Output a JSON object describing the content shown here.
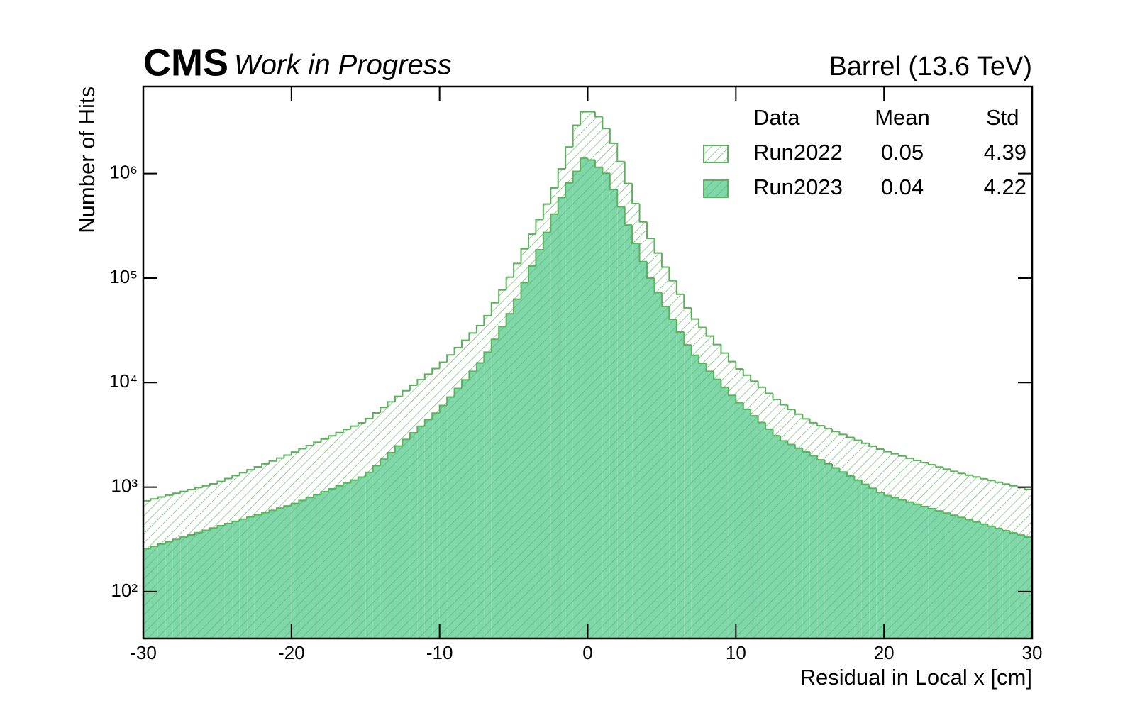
{
  "chart_data": {
    "type": "histogram",
    "title": "CMS",
    "subtitle": "Work in Progress",
    "annotation": "Barrel (13.6 TeV)",
    "xlabel": "Residual in Local x [cm]",
    "ylabel": "Number of Hits",
    "log_y": true,
    "xlim": [
      -30,
      30
    ],
    "xticks": [
      -30,
      -20,
      -10,
      0,
      10,
      20,
      30
    ],
    "ylim": [
      35.6,
      6800000
    ],
    "yticks": [
      {
        "value": 100,
        "label": "10²"
      },
      {
        "value": 1000,
        "label": "10³"
      },
      {
        "value": 10000,
        "label": "10⁴"
      },
      {
        "value": 100000,
        "label": "10⁵"
      },
      {
        "value": 1000000,
        "label": "10⁶"
      }
    ],
    "legend": {
      "loc": "upper right",
      "header": [
        "Data",
        "Mean",
        "Std"
      ]
    },
    "bins": [
      -30,
      -29.5,
      -29,
      -28.5,
      -28,
      -27.5,
      -27,
      -26.5,
      -26,
      -25.5,
      -25,
      -24.5,
      -24,
      -23.5,
      -23,
      -22.5,
      -22,
      -21.5,
      -21,
      -20.5,
      -20,
      -19.5,
      -19,
      -18.5,
      -18,
      -17.5,
      -17,
      -16.5,
      -16,
      -15.5,
      -15,
      -14.5,
      -14,
      -13.5,
      -13,
      -12.5,
      -12,
      -11.5,
      -11,
      -10.5,
      -10,
      -9.5,
      -9,
      -8.5,
      -8,
      -7.5,
      -7,
      -6.5,
      -6,
      -5.5,
      -5,
      -4.5,
      -4,
      -3.5,
      -3,
      -2.5,
      -2,
      -1.5,
      -1,
      -0.5,
      0,
      0.5,
      1,
      1.5,
      2,
      2.5,
      3,
      3.5,
      4,
      4.5,
      5,
      5.5,
      6,
      6.5,
      7,
      7.5,
      8,
      8.5,
      9,
      9.5,
      10,
      10.5,
      11,
      11.5,
      12,
      12.5,
      13,
      13.5,
      14,
      14.5,
      15,
      15.5,
      16,
      16.5,
      17,
      17.5,
      18,
      18.5,
      19,
      19.5,
      20,
      20.5,
      21,
      21.5,
      22,
      22.5,
      23,
      23.5,
      24,
      24.5,
      25,
      25.5,
      26,
      26.5,
      27,
      27.5,
      28,
      28.5,
      29,
      29.5,
      30
    ],
    "series": [
      {
        "name": "Run2022",
        "color": "#5cb15c",
        "fill": "#ffffff",
        "hatch_color": "#7cc47c",
        "mean": 0.05,
        "std": 4.39,
        "values": [
          740,
          771,
          804,
          838,
          873,
          910,
          948,
          989,
          1030,
          1074,
          1132,
          1208,
          1288,
          1374,
          1466,
          1563,
          1667,
          1778,
          1897,
          2023,
          2168,
          2328,
          2500,
          2685,
          2884,
          3097,
          3327,
          3573,
          3837,
          4121,
          4539,
          5129,
          5794,
          6546,
          7396,
          8356,
          9441,
          10670,
          12050,
          13610,
          15670,
          18410,
          21630,
          25410,
          29850,
          35070,
          43750,
          58080,
          76910,
          102100,
          138000,
          190500,
          263000,
          363100,
          510500,
          729400,
          1109000,
          1799000,
          2900000,
          3900000,
          3900000,
          3500000,
          2692000,
          1950000,
          1303000,
          803500,
          516000,
          345000,
          239900,
          173800,
          127400,
          94400,
          69980,
          51880,
          40640,
          33730,
          27930,
          23120,
          19190,
          15890,
          13520,
          11800,
          10330,
          9036,
          7889,
          6902,
          6138,
          5534,
          4989,
          4498,
          4130,
          3873,
          3631,
          3404,
          3192,
          2992,
          2805,
          2630,
          2466,
          2312,
          2185,
          2082,
          1984,
          1890,
          1801,
          1716,
          1635,
          1558,
          1484,
          1414,
          1353,
          1302,
          1252,
          1204,
          1157,
          1113,
          1070,
          1029,
          990,
          952
        ]
      },
      {
        "name": "Run2023",
        "color": "#5cb15c",
        "fill": "#80d8a9",
        "hatch_color": "#5fb585",
        "mean": 0.04,
        "std": 4.22,
        "values": [
          258,
          271,
          285,
          300,
          316,
          332,
          349,
          367,
          386,
          406,
          427,
          448,
          470,
          494,
          518,
          544,
          571,
          599,
          629,
          660,
          698,
          745,
          794,
          847,
          904,
          964,
          1028,
          1096,
          1169,
          1247,
          1385,
          1602,
          1851,
          2140,
          2475,
          2861,
          3308,
          3823,
          4420,
          5110,
          6039,
          7295,
          8790,
          10620,
          12820,
          15450,
          19540,
          25940,
          34360,
          45600,
          62950,
          90360,
          130000,
          186600,
          273800,
          409700,
          588800,
          812800,
          1050000,
          1400000,
          1350000,
          1150000,
          1006000,
          703800,
          481400,
          321800,
          215000,
          143700,
          100000,
          72440,
          53580,
          40360,
          30480,
          22960,
          18280,
          15310,
          12820,
          10760,
          9016,
          7551,
          6427,
          5559,
          4808,
          4150,
          3589,
          3105,
          2770,
          2556,
          2358,
          2175,
          1998,
          1826,
          1669,
          1526,
          1395,
          1275,
          1166,
          1065,
          974,
          890,
          831,
          792,
          754,
          719,
          685,
          652,
          622,
          592,
          564,
          538,
          512,
          488,
          465,
          443,
          422,
          402,
          383,
          365,
          348,
          332
        ]
      }
    ]
  }
}
